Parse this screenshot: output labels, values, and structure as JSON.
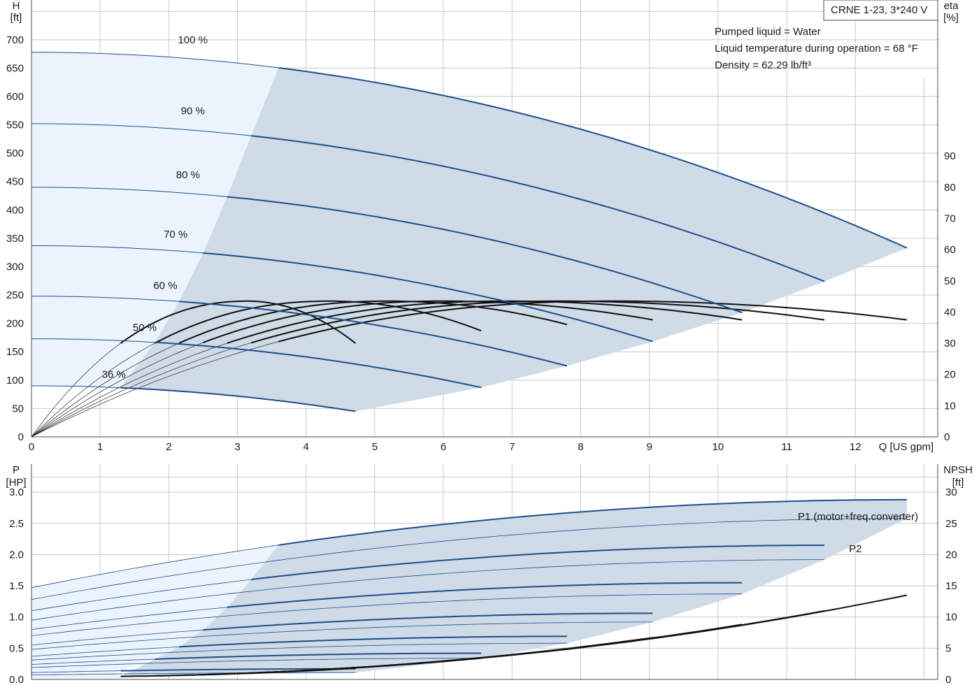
{
  "pump_label": "CRNE 1-23, 3*240 V",
  "info_lines": [
    "Pumped liquid = Water",
    "Liquid temperature during operation = 68 °F",
    "Density = 62.29 lb/ft³"
  ],
  "colors": {
    "background": "#ffffff",
    "grid": "#c9c9c9",
    "head_curve": "#1f4e8c",
    "thin_curve": "#1f4e8c",
    "eff_curve": "#111111",
    "region_fill": "#cfdbe7",
    "low_region_fill": "#ebf4fc",
    "text": "#1a1a1a",
    "p1_label": "#1f4e8c"
  },
  "chart_data": [
    {
      "type": "line",
      "name": "head_efficiency",
      "xlabel": "Q [US gpm]",
      "ylabel_left": [
        "H",
        "[ft]"
      ],
      "ylabel_right": [
        "eta",
        "[%]"
      ],
      "x_ticks": [
        0,
        1,
        2,
        3,
        4,
        5,
        6,
        7,
        8,
        9,
        10,
        11,
        12
      ],
      "y_ticks_left": [
        0,
        50,
        100,
        150,
        200,
        250,
        300,
        350,
        400,
        450,
        500,
        550,
        600,
        650,
        700
      ],
      "y_ticks_right": [
        0,
        10,
        20,
        30,
        40,
        50,
        60,
        70,
        80,
        90
      ],
      "xlim": [
        0,
        13.2
      ],
      "ylim_left": [
        0,
        770
      ],
      "ylim_right": [
        0,
        140
      ],
      "grid": true,
      "speed_curves": [
        {
          "label": "100 %",
          "shutoff_head": 678,
          "q_min": 3.6,
          "q_max": 12.75,
          "h_end": 333,
          "label_pos": [
            2.35,
            700
          ]
        },
        {
          "label": "90 %",
          "shutoff_head": 552,
          "q_min": 3.2,
          "q_max": 11.55,
          "h_end": 274,
          "label_pos": [
            2.35,
            575
          ]
        },
        {
          "label": "80 %",
          "shutoff_head": 440,
          "q_min": 2.85,
          "q_max": 10.35,
          "h_end": 219,
          "label_pos": [
            2.28,
            462
          ]
        },
        {
          "label": "70 %",
          "shutoff_head": 337,
          "q_min": 2.5,
          "q_max": 9.05,
          "h_end": 168,
          "label_pos": [
            2.1,
            357
          ]
        },
        {
          "label": "60 %",
          "shutoff_head": 248,
          "q_min": 2.15,
          "q_max": 7.8,
          "h_end": 125,
          "label_pos": [
            1.95,
            267
          ]
        },
        {
          "label": "50 %",
          "shutoff_head": 173,
          "q_min": 1.8,
          "q_max": 6.55,
          "h_end": 87,
          "label_pos": [
            1.65,
            193
          ]
        },
        {
          "label": "36 %",
          "shutoff_head": 90,
          "q_min": 1.3,
          "q_max": 4.72,
          "h_end": 45,
          "label_pos": [
            1.2,
            110
          ]
        }
      ],
      "efficiency_curves": [
        {
          "speed": "100 %",
          "q_end": 12.75,
          "eta_peak": 43.5,
          "q_peak": 8.5,
          "eta_end": 37.5
        },
        {
          "speed": "90 %",
          "q_end": 11.55,
          "eta_peak": 43.5,
          "q_peak": 7.7,
          "eta_end": 37.5
        },
        {
          "speed": "80 %",
          "q_end": 10.35,
          "eta_peak": 43.5,
          "q_peak": 6.9,
          "eta_end": 37.5
        },
        {
          "speed": "70 %",
          "q_end": 9.05,
          "eta_peak": 43.5,
          "q_peak": 6.0,
          "eta_end": 37.5
        },
        {
          "speed": "60 %",
          "q_end": 7.8,
          "eta_peak": 43.5,
          "q_peak": 5.2,
          "eta_end": 36.0
        },
        {
          "speed": "50 %",
          "q_end": 6.55,
          "eta_peak": 43.5,
          "q_peak": 4.35,
          "eta_end": 34.0
        },
        {
          "speed": "36 %",
          "q_end": 4.72,
          "eta_peak": 43.5,
          "q_peak": 3.15,
          "eta_end": 30.0
        }
      ]
    },
    {
      "type": "line",
      "name": "power_npsh",
      "ylabel_left": [
        "P",
        "[HP]"
      ],
      "ylabel_right": [
        "NPSH",
        "[ft]"
      ],
      "x_ticks": [
        0,
        1,
        2,
        3,
        4,
        5,
        6,
        7,
        8,
        9,
        10,
        11,
        12
      ],
      "y_ticks_left": [
        0.0,
        0.5,
        1.0,
        1.5,
        2.0,
        2.5,
        3.0
      ],
      "y_ticks_right": [
        0,
        5,
        10,
        15,
        20,
        25,
        30
      ],
      "xlim": [
        0,
        13.2
      ],
      "ylim_left": [
        0,
        3.45
      ],
      "ylim_right": [
        0,
        34.5
      ],
      "grid": true,
      "series_labels": {
        "p1": "P1 (motor+freq.converter)",
        "p2": "P2"
      },
      "power_curves": [
        {
          "speed": "100 %",
          "p1_start": 1.47,
          "p1_max": 2.88,
          "p2_start": 1.28,
          "p2_max": 2.58,
          "q_min": 3.6,
          "q_max": 12.75
        },
        {
          "speed": "90 %",
          "p1_start": 1.1,
          "p1_max": 2.15,
          "p2_start": 0.95,
          "p2_max": 1.92,
          "q_min": 3.2,
          "q_max": 11.55
        },
        {
          "speed": "80 %",
          "p1_start": 0.8,
          "p1_max": 1.55,
          "p2_start": 0.7,
          "p2_max": 1.37,
          "q_min": 2.85,
          "q_max": 10.35
        },
        {
          "speed": "70 %",
          "p1_start": 0.55,
          "p1_max": 1.06,
          "p2_start": 0.48,
          "p2_max": 0.92,
          "q_min": 2.5,
          "q_max": 9.05
        },
        {
          "speed": "60 %",
          "p1_start": 0.37,
          "p1_max": 0.69,
          "p2_start": 0.31,
          "p2_max": 0.58,
          "q_min": 2.15,
          "q_max": 7.8
        },
        {
          "speed": "50 %",
          "p1_start": 0.24,
          "p1_max": 0.42,
          "p2_start": 0.19,
          "p2_max": 0.34,
          "q_min": 1.8,
          "q_max": 6.55
        },
        {
          "speed": "36 %",
          "p1_start": 0.11,
          "p1_max": 0.17,
          "p2_start": 0.07,
          "p2_max": 0.11,
          "q_min": 1.3,
          "q_max": 4.72
        }
      ],
      "npsh_curves": [
        {
          "speed": "100 %",
          "q_max": 12.75,
          "npsh_max": 13.5
        },
        {
          "speed": "90 %",
          "q_max": 11.55,
          "npsh_max": 11.0
        },
        {
          "speed": "80 %",
          "q_max": 10.35,
          "npsh_max": 8.8
        },
        {
          "speed": "70 %",
          "q_max": 9.05,
          "npsh_max": 6.7
        },
        {
          "speed": "60 %",
          "q_max": 7.8,
          "npsh_max": 4.9
        },
        {
          "speed": "50 %",
          "q_max": 6.55,
          "npsh_max": 3.4
        },
        {
          "speed": "36 %",
          "q_max": 4.72,
          "npsh_max": 1.8
        }
      ]
    }
  ]
}
